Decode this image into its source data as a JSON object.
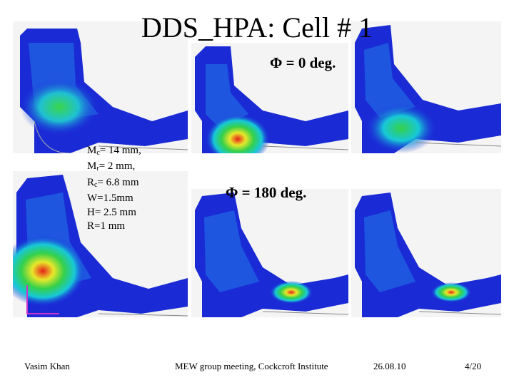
{
  "slide": {
    "title": "DDS_HPA: Cell # 1",
    "phase_top": "Φ = 0 deg.",
    "phase_bottom": "Φ = 180 deg.",
    "params": [
      {
        "main": "M",
        "sub": "c",
        "rest": "= 14 mm,"
      },
      {
        "main": "M",
        "sub": "r",
        "rest": "= 2 mm,"
      },
      {
        "main": "R",
        "sub": "c",
        "rest": "= 6.8 mm"
      },
      {
        "main": "W=1.5mm",
        "sub": "",
        "rest": ""
      },
      {
        "main": "H= 2.5 mm",
        "sub": "",
        "rest": ""
      },
      {
        "main": "R=1 mm",
        "sub": "",
        "rest": ""
      }
    ]
  },
  "footer": {
    "author": "Vasim Khan",
    "event": "MEW group meeting, Cockcroft Institute",
    "date": "26.08.10",
    "page": "4/20"
  },
  "colors": {
    "field_low": "#1a2bd6",
    "field_mid": "#17c8d8",
    "field_green": "#35d04a",
    "field_yellow": "#e8e82a",
    "field_high": "#e8201a"
  }
}
